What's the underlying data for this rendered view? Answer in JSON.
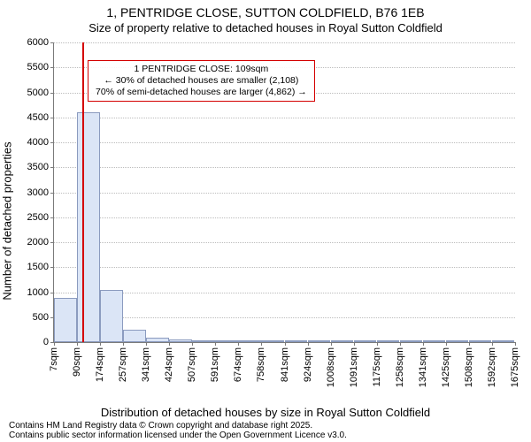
{
  "title_line1": "1, PENTRIDGE CLOSE, SUTTON COLDFIELD, B76 1EB",
  "title_line2": "Size of property relative to detached houses in Royal Sutton Coldfield",
  "ylabel": "Number of detached properties",
  "xlabel": "Distribution of detached houses by size in Royal Sutton Coldfield",
  "attribution_line1": "Contains HM Land Registry data © Crown copyright and database right 2025.",
  "attribution_line2": "Contains public sector information licensed under the Open Government Licence v3.0.",
  "chart": {
    "type": "histogram",
    "bg_color": "#ffffff",
    "border_color": "#7a7a7a",
    "grid_color": "#bcbcbc",
    "bar_fill": "#dbe5f6",
    "bar_stroke": "#8b9bbf",
    "marker_color": "#d40000",
    "annotation_border": "#d40000",
    "x_ticks": [
      "7sqm",
      "90sqm",
      "174sqm",
      "257sqm",
      "341sqm",
      "424sqm",
      "507sqm",
      "591sqm",
      "674sqm",
      "758sqm",
      "841sqm",
      "924sqm",
      "1008sqm",
      "1091sqm",
      "1175sqm",
      "1258sqm",
      "1341sqm",
      "1425sqm",
      "1508sqm",
      "1592sqm",
      "1675sqm"
    ],
    "y_max": 6000,
    "y_tick_step": 500,
    "y_ticks": [
      0,
      500,
      1000,
      1500,
      2000,
      2500,
      3000,
      3500,
      4000,
      4500,
      5000,
      5500,
      6000
    ],
    "bars": [
      {
        "i": 0,
        "value": 880
      },
      {
        "i": 1,
        "value": 4600
      },
      {
        "i": 2,
        "value": 1050
      },
      {
        "i": 3,
        "value": 250
      },
      {
        "i": 4,
        "value": 80
      },
      {
        "i": 5,
        "value": 45
      },
      {
        "i": 6,
        "value": 25
      },
      {
        "i": 7,
        "value": 12
      },
      {
        "i": 8,
        "value": 8
      },
      {
        "i": 9,
        "value": 8
      },
      {
        "i": 10,
        "value": 5
      },
      {
        "i": 11,
        "value": 5
      },
      {
        "i": 12,
        "value": 3
      },
      {
        "i": 13,
        "value": 3
      },
      {
        "i": 14,
        "value": 2
      },
      {
        "i": 15,
        "value": 2
      },
      {
        "i": 16,
        "value": 1
      },
      {
        "i": 17,
        "value": 1
      },
      {
        "i": 18,
        "value": 1
      },
      {
        "i": 19,
        "value": 1
      }
    ],
    "marker_bar_index": 1,
    "marker_fraction_in_bar": 0.23,
    "annotation": {
      "line1": "1 PENTRIDGE CLOSE: 109sqm",
      "line2": "← 30% of detached houses are smaller (2,108)",
      "line3": "70% of semi-detached houses are larger (4,862) →",
      "top_value": 5650
    }
  },
  "fonts": {
    "title_size": 14,
    "subtitle_size": 13,
    "axis_label_size": 13,
    "tick_size": 11,
    "annotation_size": 10.5,
    "attribution_size": 10
  }
}
